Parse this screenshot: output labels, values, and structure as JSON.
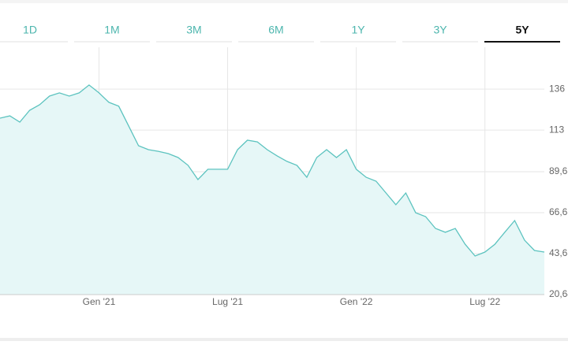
{
  "tabs": {
    "items": [
      "1D",
      "1M",
      "3M",
      "6M",
      "1Y",
      "3Y",
      "5Y"
    ],
    "active": 6
  },
  "chart_data": {
    "type": "line",
    "categories": [
      null,
      null,
      null,
      null,
      null,
      null,
      null,
      null,
      null,
      null,
      "Gen '21",
      null,
      null,
      null,
      null,
      null,
      null,
      null,
      null,
      null,
      null,
      null,
      null,
      "Lug '21",
      null,
      null,
      null,
      null,
      null,
      null,
      null,
      null,
      null,
      null,
      null,
      null,
      "Gen '22",
      null,
      null,
      null,
      null,
      null,
      null,
      null,
      null,
      null,
      null,
      null,
      null,
      "Lug '22",
      null,
      null,
      null,
      null,
      null,
      null
    ],
    "series": [
      {
        "color": "#5cc3bf",
        "values": [
          119.7,
          121.0,
          117.5,
          124.1,
          127.2,
          132.1,
          133.9,
          132.1,
          133.9,
          138.3,
          133.9,
          128.6,
          126.4,
          115.3,
          104.2,
          102.0,
          101.1,
          99.8,
          97.6,
          93.2,
          85.2,
          91.0,
          91.0,
          91.0,
          102.0,
          107.3,
          106.4,
          102.0,
          98.5,
          95.4,
          93.2,
          86.5,
          97.6,
          102.0,
          97.6,
          102.0,
          91.0,
          86.5,
          84.3,
          77.7,
          71.1,
          77.7,
          66.6,
          64.4,
          57.8,
          55.6,
          57.8,
          48.9,
          42.3,
          44.5,
          48.9,
          55.6,
          62.2,
          51.2,
          45.4,
          44.5
        ]
      }
    ],
    "ylim": [
      20.64,
      159.5
    ],
    "yticks": [
      {
        "value": 20.64,
        "label": "20,64"
      },
      {
        "value": 43.63,
        "label": "43,63"
      },
      {
        "value": 66.63,
        "label": "66,63"
      },
      {
        "value": 89.63,
        "label": "89,63"
      },
      113,
      136
    ],
    "grid": true
  }
}
